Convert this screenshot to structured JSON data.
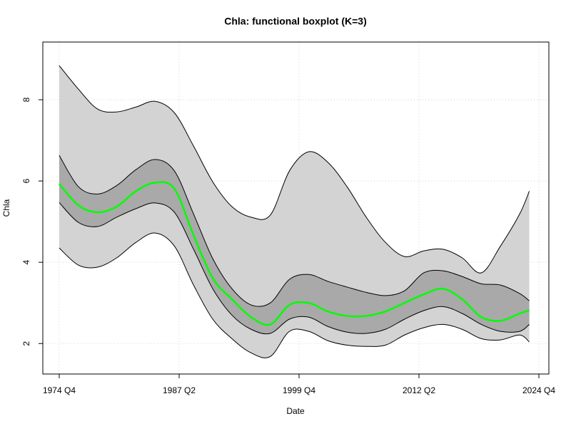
{
  "chart_data": {
    "type": "fbplot",
    "title": "Chla: functional boxplot (K=3)",
    "xlabel": "Date",
    "ylabel": "Chla",
    "x": [
      1974.75,
      1976.75,
      1978.75,
      1980.75,
      1982.75,
      1984.75,
      1986.75,
      1988.75,
      1990.75,
      1992.75,
      1994.75,
      1996.75,
      1998.75,
      2000.75,
      2002.75,
      2004.75,
      2006.75,
      2008.75,
      2010.75,
      2012.75,
      2014.75,
      2016.75,
      2018.75,
      2020.75,
      2022.75,
      2023.75
    ],
    "outer": {
      "color": "#d3d3d3",
      "upper": [
        8.84,
        8.26,
        7.77,
        7.7,
        7.82,
        7.96,
        7.68,
        6.86,
        5.98,
        5.37,
        5.11,
        5.16,
        6.25,
        6.72,
        6.46,
        5.86,
        5.11,
        4.49,
        4.14,
        4.28,
        4.32,
        4.11,
        3.74,
        4.4,
        5.19,
        5.75
      ],
      "lower": [
        4.35,
        3.93,
        3.88,
        4.11,
        4.49,
        4.72,
        4.4,
        3.44,
        2.6,
        2.12,
        1.77,
        1.68,
        2.3,
        2.3,
        2.07,
        1.96,
        1.93,
        1.96,
        2.21,
        2.39,
        2.47,
        2.35,
        2.12,
        2.09,
        2.21,
        2.04
      ]
    },
    "inner": {
      "color": "#a9a9a9",
      "upper": [
        6.63,
        5.86,
        5.68,
        5.89,
        6.28,
        6.53,
        6.25,
        5.19,
        4.09,
        3.35,
        2.95,
        3.0,
        3.58,
        3.7,
        3.53,
        3.39,
        3.26,
        3.18,
        3.3,
        3.74,
        3.79,
        3.65,
        3.47,
        3.44,
        3.23,
        3.05
      ],
      "lower": [
        5.47,
        4.98,
        4.88,
        5.11,
        5.32,
        5.46,
        5.23,
        4.32,
        3.35,
        2.7,
        2.35,
        2.25,
        2.6,
        2.65,
        2.42,
        2.28,
        2.25,
        2.35,
        2.6,
        2.81,
        2.91,
        2.74,
        2.47,
        2.3,
        2.3,
        2.47
      ]
    },
    "median": {
      "color": "#00ff00",
      "values": [
        5.93,
        5.4,
        5.23,
        5.37,
        5.75,
        5.96,
        5.81,
        4.67,
        3.61,
        3.09,
        2.65,
        2.47,
        2.95,
        3.0,
        2.79,
        2.68,
        2.68,
        2.79,
        3.0,
        3.21,
        3.35,
        3.09,
        2.65,
        2.56,
        2.74,
        2.82
      ]
    },
    "xlim": [
      1973.04,
      2025.79
    ],
    "ylim": [
      1.25,
      9.42
    ],
    "xticks": [
      {
        "value": 1974.75,
        "label": "1974 Q4"
      },
      {
        "value": 1987.25,
        "label": "1987 Q2"
      },
      {
        "value": 1999.75,
        "label": "1999 Q4"
      },
      {
        "value": 2012.25,
        "label": "2012 Q2"
      },
      {
        "value": 2024.75,
        "label": "2024 Q4"
      }
    ],
    "yticks": [
      2,
      4,
      6,
      8
    ],
    "grid": true
  }
}
